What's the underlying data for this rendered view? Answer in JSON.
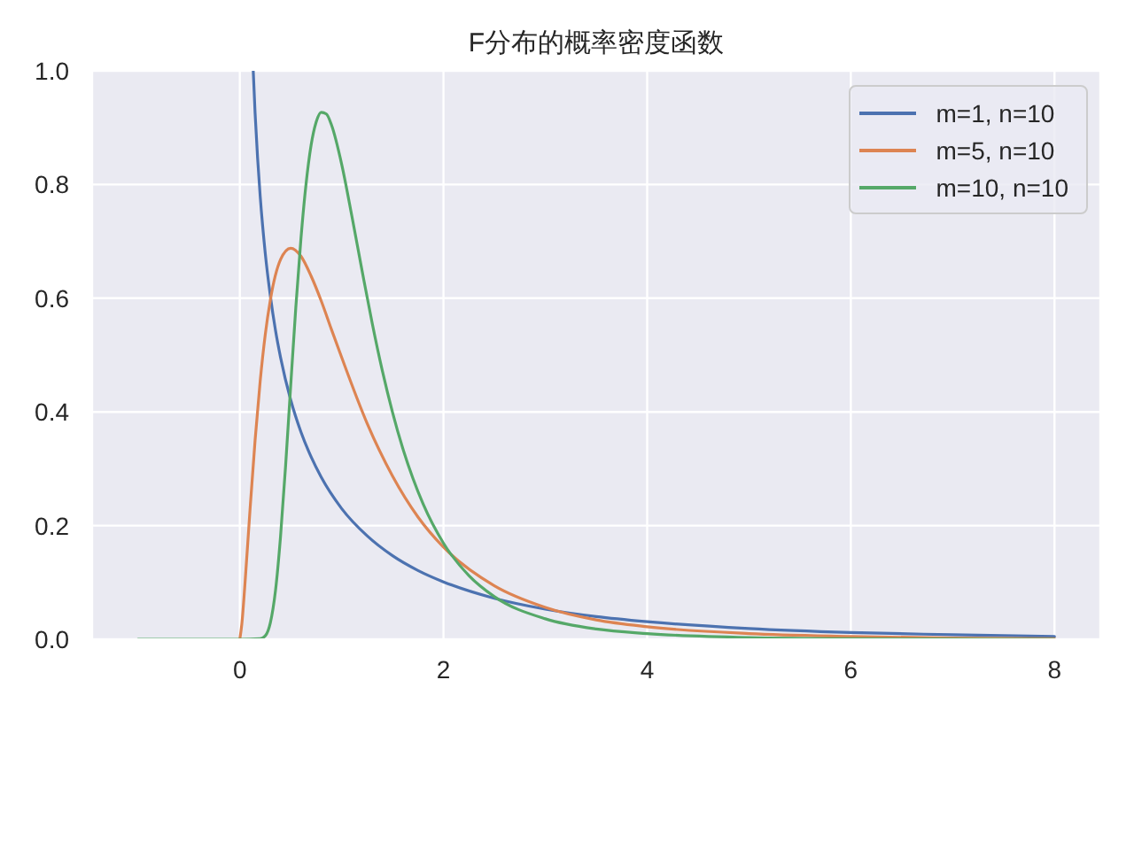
{
  "chart_data": {
    "type": "line",
    "title": "F分布的概率密度函数",
    "series": [
      {
        "name": "m=1, n=10",
        "color": "#4c72b0",
        "x": [
          0.132,
          0.15,
          0.175,
          0.2,
          0.25,
          0.3,
          0.35,
          0.4,
          0.5,
          0.6,
          0.7,
          0.8,
          1,
          1.25,
          1.5,
          1.75,
          2,
          2.5,
          3,
          3.5,
          4,
          5,
          6,
          7,
          8
        ],
        "values": [
          1.0,
          0.926,
          0.846,
          0.78,
          0.679,
          0.604,
          0.544,
          0.496,
          0.421,
          0.365,
          0.321,
          0.285,
          0.23,
          0.182,
          0.147,
          0.121,
          0.101,
          0.072,
          0.053,
          0.04,
          0.031,
          0.019,
          0.012,
          0.008,
          0.005
        ]
      },
      {
        "name": "m=5, n=10",
        "color": "#dd8452",
        "x": [
          0,
          0.02,
          0.05,
          0.1,
          0.15,
          0.2,
          0.25,
          0.3,
          0.4,
          0.5,
          0.6,
          0.7,
          0.8,
          0.9,
          1,
          1.25,
          1.5,
          1.75,
          2,
          2.5,
          3,
          3.5,
          4,
          5,
          6,
          7,
          8
        ],
        "values": [
          0,
          0.027,
          0.096,
          0.227,
          0.35,
          0.454,
          0.536,
          0.597,
          0.668,
          0.688,
          0.674,
          0.639,
          0.595,
          0.545,
          0.496,
          0.38,
          0.287,
          0.215,
          0.162,
          0.094,
          0.056,
          0.034,
          0.022,
          0.01,
          0.005,
          0.002,
          0.001
        ]
      },
      {
        "name": "m=10, n=10",
        "color": "#55a868",
        "x": [
          -1,
          0,
          0.2,
          0.25,
          0.3,
          0.35,
          0.4,
          0.45,
          0.5,
          0.55,
          0.6,
          0.65,
          0.7,
          0.75,
          0.8,
          0.85,
          0.9,
          1,
          1.1,
          1.2,
          1.3,
          1.4,
          1.5,
          1.6,
          1.7,
          1.8,
          2,
          2.25,
          2.5,
          3,
          3.5,
          4,
          5,
          6,
          8
        ],
        "values": [
          0,
          0,
          0.001,
          0.006,
          0.029,
          0.085,
          0.181,
          0.306,
          0.447,
          0.584,
          0.704,
          0.8,
          0.869,
          0.91,
          0.927,
          0.924,
          0.905,
          0.836,
          0.745,
          0.649,
          0.556,
          0.472,
          0.399,
          0.336,
          0.283,
          0.238,
          0.169,
          0.112,
          0.075,
          0.036,
          0.018,
          0.01,
          0.003,
          0.001,
          0
        ]
      }
    ],
    "xlim": [
      -1.45,
      8.45
    ],
    "xticks": [
      0,
      2,
      4,
      6,
      8
    ],
    "ylim": [
      0,
      1
    ],
    "yticks": [
      {
        "value": 0,
        "label": "0.0"
      },
      0.2,
      0.4,
      0.6,
      0.8,
      {
        "value": 1,
        "label": "1.0"
      }
    ],
    "grid": true,
    "legend": "top right",
    "line_style": "solid"
  }
}
